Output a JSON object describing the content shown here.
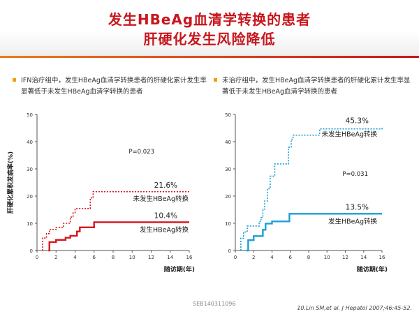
{
  "title": {
    "line1": "发生HBeAg血清学转换的患者",
    "line2": "肝硬化发生风险降低"
  },
  "bullets": {
    "left": "IFN治疗组中，发生HBeAg血清学转换患者的肝硬化累计发生率显著低于未发生HBeAg血清学转换的患者",
    "right": "未治疗组中，发生HBeAg血清学转换患者的肝硬化累计发生率显著低于未发生HBeAg血清学转换的患者"
  },
  "footer": {
    "code": "SEB140311096",
    "reference": "10.Lin SM,et al. J Hepatol 2007;46:45-52."
  },
  "colors": {
    "title": "#c8161d",
    "ifn": "#d8141c",
    "untreated": "#1a9fd4",
    "bullet": "#f0a000"
  },
  "chart_data": [
    {
      "type": "line",
      "style": "step",
      "ylabel": "肝硬化累积发病率(%)",
      "xlabel": "随访期(年)",
      "xlim": [
        0,
        16
      ],
      "ylim": [
        0,
        50
      ],
      "xticks": [
        "0",
        "2",
        "4",
        "6",
        "8",
        "10",
        "12",
        "14",
        "16"
      ],
      "yticks": [
        "0",
        "10",
        "20",
        "30",
        "40",
        "50"
      ],
      "pvalue": "P=0.023",
      "color_key": "ifn",
      "series": [
        {
          "name": "未发生HBeAg转换",
          "value_label": "21.6%",
          "line": "dotted",
          "x": [
            0.6,
            1.0,
            1.3,
            2.0,
            2.8,
            3.5,
            3.8,
            4.0,
            5.6,
            5.9,
            16
          ],
          "y": [
            4.6,
            6.2,
            7.7,
            8.5,
            10.0,
            12.3,
            13.9,
            15.4,
            19.3,
            21.6,
            21.6
          ]
        },
        {
          "name": "发生HBeAg转换",
          "value_label": "10.4%",
          "line": "solid",
          "x": [
            1.2,
            1.3,
            2.0,
            3.0,
            3.5,
            4.2,
            4.5,
            6.0,
            16
          ],
          "y": [
            0,
            3.1,
            3.9,
            4.7,
            5.4,
            7.0,
            8.5,
            10.4,
            10.4
          ]
        }
      ]
    },
    {
      "type": "line",
      "style": "step",
      "ylabel": "",
      "xlabel": "随访期(年)",
      "xlim": [
        0,
        16
      ],
      "ylim": [
        0,
        50
      ],
      "xticks": [
        "0",
        "2",
        "4",
        "6",
        "8",
        "10",
        "12",
        "14",
        "16"
      ],
      "yticks": [
        "0",
        "10",
        "20",
        "30",
        "40",
        "50"
      ],
      "pvalue": "P=0.031",
      "color_key": "untreated",
      "series": [
        {
          "name": "未发生HBeAg转换",
          "value_label": "45.3%",
          "line": "dotted",
          "x": [
            0.6,
            0.9,
            1.3,
            2.6,
            2.8,
            3.0,
            3.2,
            3.5,
            3.8,
            4.3,
            5.8,
            6.1,
            6.3,
            9.2,
            16
          ],
          "y": [
            4.5,
            6.8,
            9.0,
            10.6,
            12.1,
            15.2,
            18.2,
            22.7,
            27.3,
            31.8,
            37.9,
            40.9,
            42.4,
            44.7,
            45.3
          ]
        },
        {
          "name": "发生HBeAg转换",
          "value_label": "13.5%",
          "line": "solid",
          "x": [
            1.2,
            1.4,
            2.0,
            3.0,
            3.3,
            4.0,
            5.9,
            16
          ],
          "y": [
            0,
            3.8,
            5.3,
            7.6,
            9.9,
            10.7,
            13.5,
            13.5
          ]
        }
      ]
    }
  ]
}
